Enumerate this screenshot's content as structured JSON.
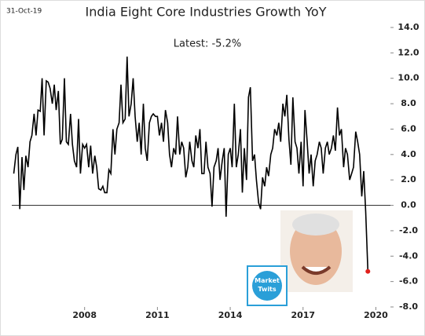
{
  "chart_data": {
    "type": "line",
    "title": "India Eight Core Industries Growth YoY",
    "subtitle": "Latest:  -5.2%",
    "date_label": "31-Oct-19",
    "logo_text": "Market Twits",
    "x": [
      2005.08,
      2005.17,
      2005.25,
      2005.33,
      2005.42,
      2005.5,
      2005.58,
      2005.67,
      2005.75,
      2005.83,
      2005.92,
      2006.0,
      2006.08,
      2006.17,
      2006.25,
      2006.33,
      2006.42,
      2006.5,
      2006.58,
      2006.67,
      2006.75,
      2006.83,
      2006.92,
      2007.0,
      2007.08,
      2007.17,
      2007.25,
      2007.33,
      2007.42,
      2007.5,
      2007.58,
      2007.67,
      2007.75,
      2007.83,
      2007.92,
      2008.0,
      2008.08,
      2008.17,
      2008.25,
      2008.33,
      2008.42,
      2008.5,
      2008.58,
      2008.67,
      2008.75,
      2008.83,
      2008.92,
      2009.0,
      2009.08,
      2009.17,
      2009.25,
      2009.33,
      2009.42,
      2009.5,
      2009.58,
      2009.67,
      2009.75,
      2009.83,
      2009.92,
      2010.0,
      2010.08,
      2010.17,
      2010.25,
      2010.33,
      2010.42,
      2010.5,
      2010.58,
      2010.67,
      2010.75,
      2010.83,
      2010.92,
      2011.0,
      2011.08,
      2011.17,
      2011.25,
      2011.33,
      2011.42,
      2011.5,
      2011.58,
      2011.67,
      2011.75,
      2011.83,
      2011.92,
      2012.0,
      2012.08,
      2012.17,
      2012.25,
      2012.33,
      2012.42,
      2012.5,
      2012.58,
      2012.67,
      2012.75,
      2012.83,
      2012.92,
      2013.0,
      2013.08,
      2013.17,
      2013.25,
      2013.33,
      2013.42,
      2013.5,
      2013.58,
      2013.67,
      2013.75,
      2013.83,
      2013.92,
      2014.0,
      2014.08,
      2014.17,
      2014.25,
      2014.33,
      2014.42,
      2014.5,
      2014.58,
      2014.67,
      2014.75,
      2014.83,
      2014.92,
      2015.0,
      2015.08,
      2015.17,
      2015.25,
      2015.33,
      2015.42,
      2015.5,
      2015.58,
      2015.67,
      2015.75,
      2015.83,
      2015.92,
      2016.0,
      2016.08,
      2016.17,
      2016.25,
      2016.33,
      2016.42,
      2016.5,
      2016.58,
      2016.67,
      2016.75,
      2016.83,
      2016.92,
      2017.0,
      2017.08,
      2017.17,
      2017.25,
      2017.33,
      2017.42,
      2017.5,
      2017.58,
      2017.67,
      2017.75,
      2017.83,
      2017.92,
      2018.0,
      2018.08,
      2018.17,
      2018.25,
      2018.33,
      2018.42,
      2018.5,
      2018.58,
      2018.67,
      2018.75,
      2018.83,
      2018.92,
      2019.0,
      2019.08,
      2019.17,
      2019.25,
      2019.33,
      2019.42,
      2019.5,
      2019.58,
      2019.67
    ],
    "series": [
      {
        "color": "#000000",
        "values": [
          2.5,
          4.0,
          4.6,
          -0.3,
          3.8,
          1.2,
          3.9,
          3.0,
          5.0,
          5.5,
          7.2,
          5.5,
          7.5,
          7.4,
          10.0,
          5.5,
          9.8,
          9.7,
          9.2,
          8.0,
          9.5,
          7.5,
          9.0,
          4.8,
          5.2,
          10.0,
          5.0,
          4.8,
          7.2,
          4.8,
          3.5,
          3.0,
          6.8,
          2.5,
          4.8,
          4.5,
          4.8,
          3.0,
          4.7,
          2.5,
          3.9,
          3.0,
          1.3,
          1.2,
          1.5,
          1.0,
          1.0,
          2.8,
          2.5,
          6.0,
          4.0,
          6.0,
          6.5,
          9.5,
          6.5,
          6.8,
          11.7,
          7.0,
          8.0,
          10.0,
          7.0,
          5.0,
          6.5,
          4.0,
          8.0,
          4.5,
          3.5,
          6.5,
          7.0,
          7.2,
          7.0,
          7.0,
          5.5,
          6.5,
          5.0,
          7.5,
          6.5,
          4.0,
          3.0,
          4.5,
          4.0,
          7.0,
          4.0,
          5.0,
          4.5,
          2.2,
          3.0,
          5.0,
          3.5,
          3.0,
          5.5,
          4.5,
          6.0,
          2.5,
          2.5,
          5.0,
          3.0,
          2.5,
          -0.1,
          3.0,
          3.5,
          4.5,
          2.0,
          3.5,
          4.5,
          -0.9,
          4.0,
          4.5,
          3.0,
          8.0,
          3.0,
          4.0,
          6.0,
          1.0,
          4.5,
          2.0,
          8.5,
          9.3,
          3.5,
          4.0,
          2.0,
          0.2,
          -0.3,
          2.2,
          1.5,
          3.0,
          2.3,
          4.0,
          4.5,
          6.0,
          5.5,
          6.5,
          5.0,
          8.0,
          7.0,
          8.7,
          5.2,
          3.2,
          8.5,
          5.0,
          4.5,
          2.5,
          5.0,
          1.5,
          7.5,
          5.0,
          2.5,
          4.0,
          1.5,
          3.5,
          4.0,
          5.0,
          4.5,
          2.5,
          4.5,
          5.0,
          4.0,
          4.5,
          5.5,
          4.3,
          7.7,
          5.5,
          6.0,
          3.0,
          4.5,
          4.0,
          2.0,
          2.5,
          3.0,
          5.8,
          5.0,
          4.0,
          0.7,
          2.7,
          -0.5,
          -5.2
        ]
      }
    ],
    "highlight_color": "#e0201b",
    "xlim": [
      2005.0,
      2020.6
    ],
    "xticks": [
      2008,
      2011,
      2014,
      2017,
      2020
    ],
    "ylim": [
      -8,
      14
    ],
    "yticks": [
      {
        "value": -8,
        "label": "-8.0"
      },
      {
        "value": -6,
        "label": "-6.0"
      },
      {
        "value": -4,
        "label": "-4.0"
      },
      {
        "value": -2,
        "label": "-2.0"
      },
      {
        "value": 0,
        "label": "0.0"
      },
      {
        "value": 2,
        "label": "2.0"
      },
      {
        "value": 4,
        "label": "4.0"
      },
      {
        "value": 6,
        "label": "6.0"
      },
      {
        "value": 8,
        "label": "8.0"
      },
      {
        "value": 10,
        "label": "10.0"
      },
      {
        "value": 12,
        "label": "12.0"
      },
      {
        "value": 14,
        "label": "14.0"
      }
    ],
    "zero_line": true
  }
}
